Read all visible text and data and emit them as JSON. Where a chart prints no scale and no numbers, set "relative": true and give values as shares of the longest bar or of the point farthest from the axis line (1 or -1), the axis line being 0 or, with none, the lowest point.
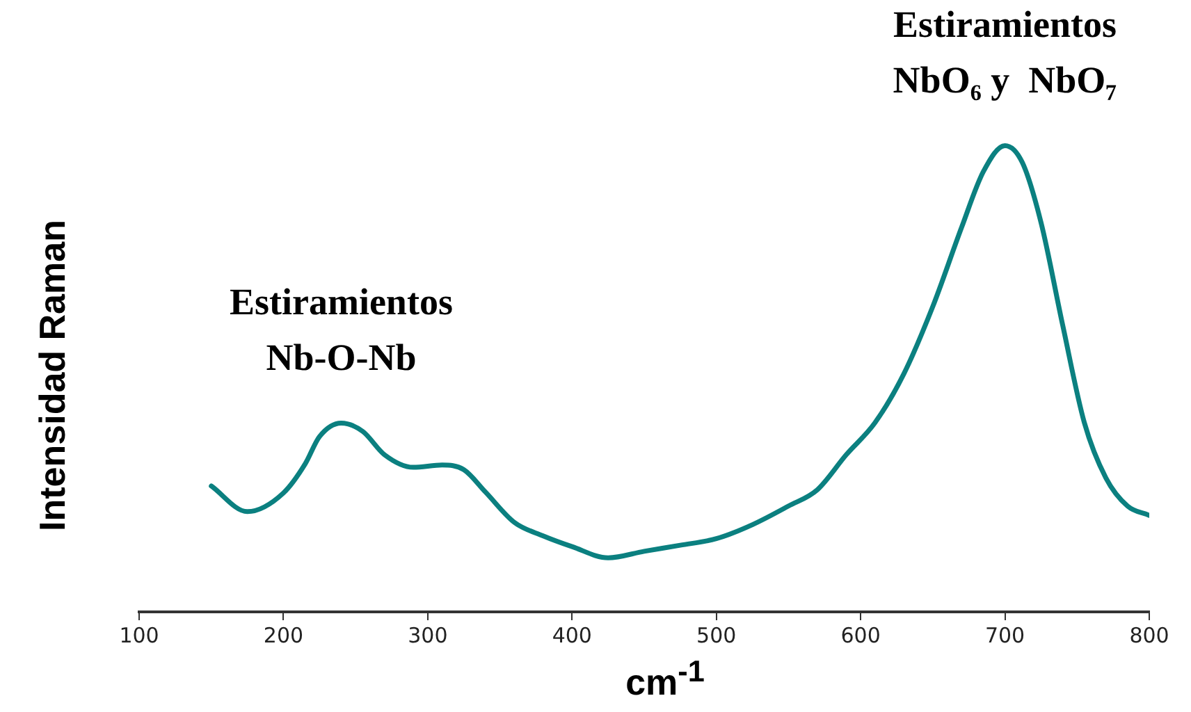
{
  "chart_data": {
    "type": "line",
    "relative": true,
    "xlabel": "cm$^{-1}$",
    "ylabel": "Intensidad Raman",
    "xlim": [
      100,
      800
    ],
    "xticks": [
      100,
      200,
      300,
      400,
      500,
      600,
      700,
      800
    ],
    "grid": false,
    "legend": false,
    "marker": "none",
    "line_style": "solid",
    "annotations": [
      {
        "text": "Estiramientos\nNb-O-Nb",
        "x": 240,
        "y": 0.405
      },
      {
        "text": "Estiramientos\nNbO₆ y  NbO₇",
        "x": 700,
        "y": 1
      }
    ],
    "series": [
      {
        "color": "#0b8080",
        "x": [
          150,
          175,
          200,
          215,
          225,
          240,
          255,
          270,
          290,
          310,
          325,
          340,
          360,
          380,
          400,
          425,
          450,
          475,
          500,
          525,
          550,
          570,
          590,
          610,
          630,
          650,
          670,
          685,
          700,
          712,
          725,
          740,
          755,
          770,
          785,
          800
        ],
        "values": [
          0.27,
          0.215,
          0.255,
          0.317,
          0.376,
          0.405,
          0.387,
          0.337,
          0.31,
          0.315,
          0.305,
          0.257,
          0.192,
          0.163,
          0.14,
          0.116,
          0.13,
          0.143,
          0.157,
          0.187,
          0.227,
          0.262,
          0.337,
          0.406,
          0.511,
          0.655,
          0.825,
          0.944,
          1,
          0.964,
          0.835,
          0.615,
          0.406,
          0.287,
          0.227,
          0.207
        ]
      }
    ]
  }
}
